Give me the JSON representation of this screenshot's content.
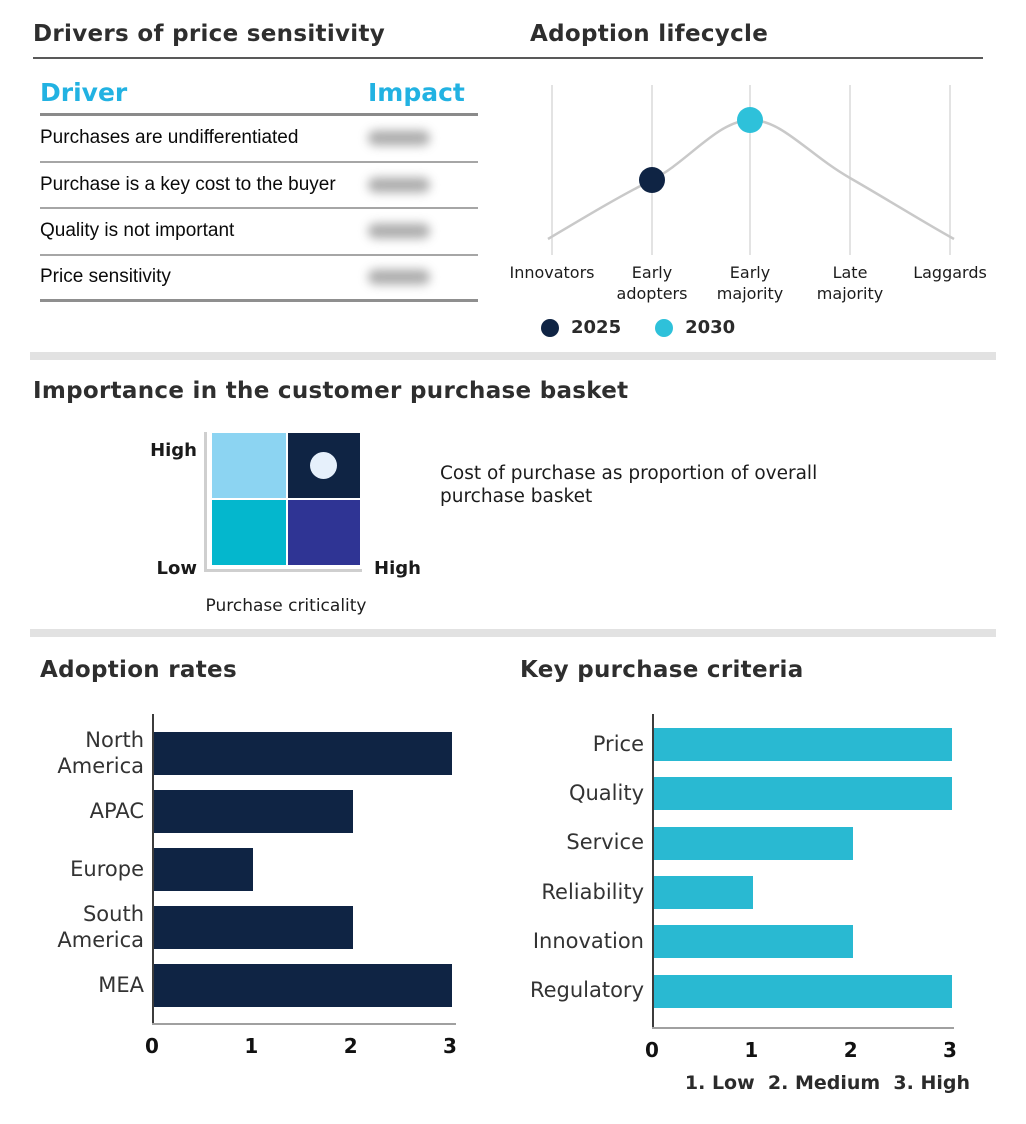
{
  "palette": {
    "navy": "#0f2444",
    "cyan_bar": "#29b9d2",
    "cyan_dot": "#2ec1da",
    "cyan_header": "#22b2e2",
    "light_blue": "#8cd4f2",
    "teal": "#04b7cd",
    "indigo": "#2f3494",
    "marker_light": "#e6f0fb",
    "curve_gray": "#c9c9c9",
    "divider_gray": "#e2e2e2"
  },
  "drivers_table": {
    "title": "Drivers of price sensitivity",
    "columns": [
      "Driver",
      "Impact"
    ],
    "rows": [
      {
        "driver": "Purchases are undifferentiated",
        "impact_redacted": true
      },
      {
        "driver": "Purchase is a key cost to the buyer",
        "impact_redacted": true
      },
      {
        "driver": "Quality is not important",
        "impact_redacted": true
      },
      {
        "driver": "Price sensitivity",
        "impact_redacted": true
      }
    ]
  },
  "chart_data": [
    {
      "id": "adoption-lifecycle",
      "type": "line",
      "title": "Adoption lifecycle",
      "x": [
        "Innovators",
        "Early adopters",
        "Early majority",
        "Late majority",
        "Laggards"
      ],
      "curve": "bell-shaped adoption curve peaking at Early majority",
      "series": [
        {
          "name": "2025",
          "marker_category": "Early adopters",
          "color": "#0f2444"
        },
        {
          "name": "2030",
          "marker_category": "Early majority",
          "color": "#2ec1da"
        }
      ],
      "legend_position": "bottom",
      "grid": "vertical-only"
    },
    {
      "id": "purchase-basket-matrix",
      "type": "heatmap",
      "title": "Importance in the customer purchase basket",
      "xlabel": "Purchase criticality",
      "x_axis_end_label": "High",
      "y_axis_labels": {
        "top": "High",
        "bottom": "Low"
      },
      "cells": {
        "top_left": "#8cd4f2",
        "top_right": "#0f2444",
        "bottom_left": "#04b7cd",
        "bottom_right": "#2f3494"
      },
      "marker": {
        "cell": "top_right",
        "color": "#e6f0fb"
      },
      "annotation": "Cost of purchase as proportion of overall purchase basket"
    },
    {
      "id": "adoption-rates",
      "type": "bar",
      "orientation": "horizontal",
      "title": "Adoption rates",
      "categories": [
        "North America",
        "APAC",
        "Europe",
        "South America",
        "MEA"
      ],
      "values": [
        3,
        2,
        1,
        2,
        3
      ],
      "xlim": [
        0,
        3
      ],
      "xticks": [
        "0",
        "1",
        "2",
        "3"
      ],
      "bar_color": "#0f2444",
      "grid": false
    },
    {
      "id": "key-purchase-criteria",
      "type": "bar",
      "orientation": "horizontal",
      "title": "Key purchase criteria",
      "categories": [
        "Price",
        "Quality",
        "Service",
        "Reliability",
        "Innovation",
        "Regulatory"
      ],
      "values": [
        3,
        3,
        2,
        1,
        2,
        3
      ],
      "xlim": [
        0,
        3
      ],
      "xticks": [
        "0",
        "1",
        "2",
        "3"
      ],
      "bar_color": "#29b9d2",
      "footnote": "1. Low  2. Medium  3. High",
      "grid": false
    }
  ]
}
